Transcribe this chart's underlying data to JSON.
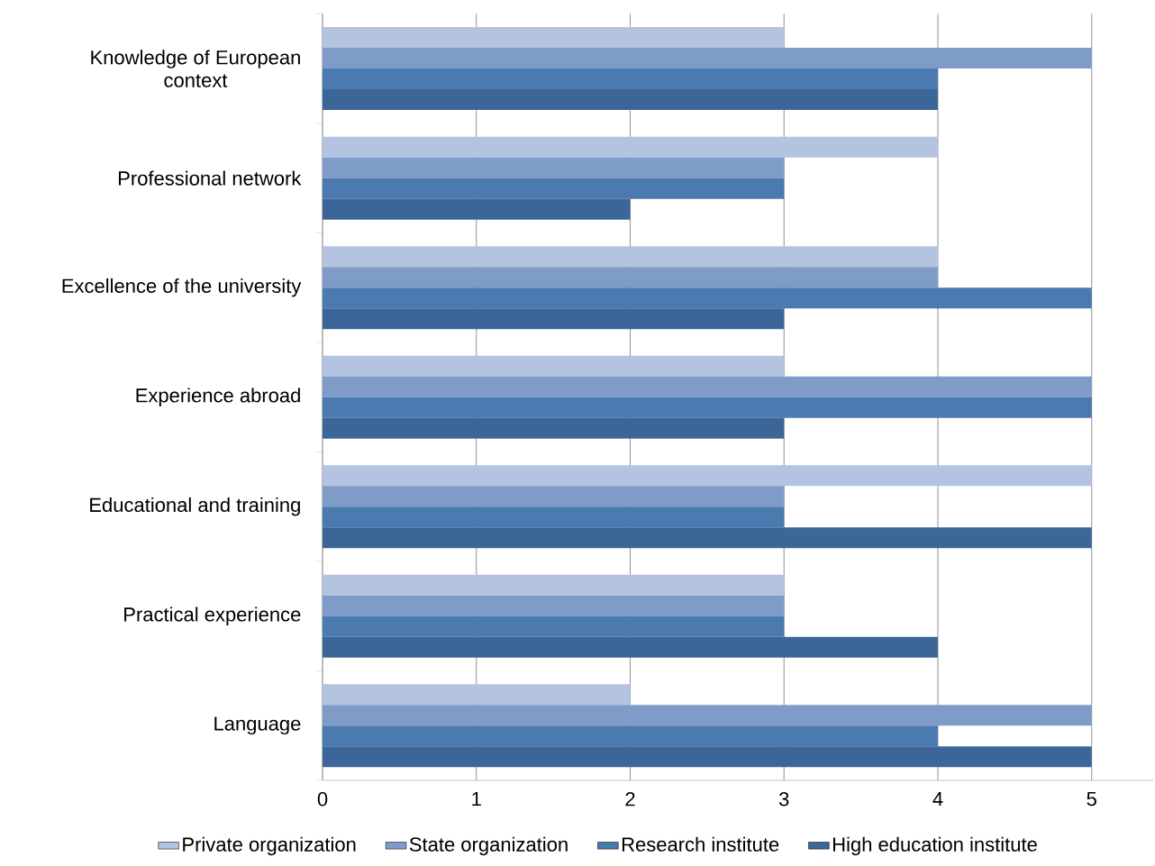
{
  "chart_data": {
    "type": "bar",
    "orientation": "horizontal",
    "categories": [
      "Knowledge of European context",
      "Professional network",
      "Excellence of the university",
      "Experience abroad",
      "Educational and training",
      "Practical experience",
      "Language"
    ],
    "series": [
      {
        "name": "Private organization",
        "color": "#b4c3df",
        "values": [
          3,
          4,
          4,
          3,
          5,
          3,
          2
        ]
      },
      {
        "name": "State organization",
        "color": "#7f9cc9",
        "values": [
          5,
          3,
          4,
          5,
          3,
          3,
          5
        ]
      },
      {
        "name": "Research institute",
        "color": "#4a7ab0",
        "values": [
          4,
          3,
          5,
          5,
          3,
          3,
          4
        ]
      },
      {
        "name": "High education institute",
        "color": "#3c6698",
        "values": [
          4,
          2,
          3,
          3,
          5,
          4,
          5
        ]
      }
    ],
    "xlim": [
      0,
      5.4
    ],
    "xticks": [
      0,
      1,
      2,
      3,
      4,
      5
    ],
    "grid": "x",
    "legend": "bottom"
  }
}
